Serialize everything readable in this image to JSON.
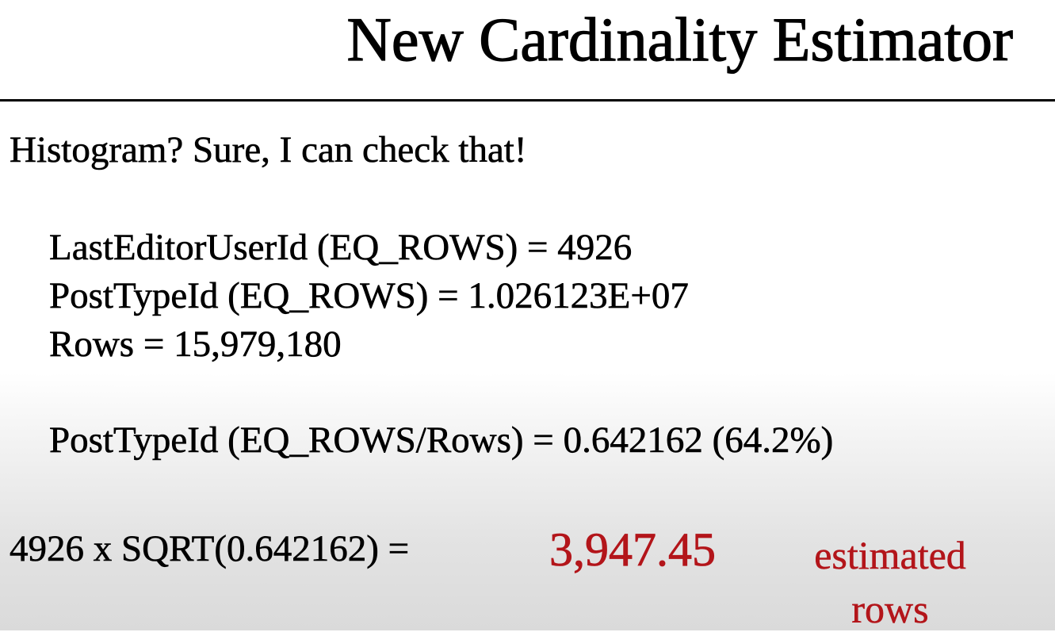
{
  "slide": {
    "title": "New Cardinality Estimator",
    "intro": "Histogram? Sure, I can check that!",
    "stats": [
      "LastEditorUserId (EQ_ROWS) = 4926",
      "PostTypeId (EQ_ROWS) = 1.026123E+07",
      "Rows = 15,979,180"
    ],
    "selectivity": "PostTypeId (EQ_ROWS/Rows) = 0.642162 (64.2%)",
    "formula": "4926 x SQRT(0.642162) =",
    "result_value": "3,947.45",
    "result_unit": "estimated rows",
    "accent_color": "#b3151a"
  }
}
